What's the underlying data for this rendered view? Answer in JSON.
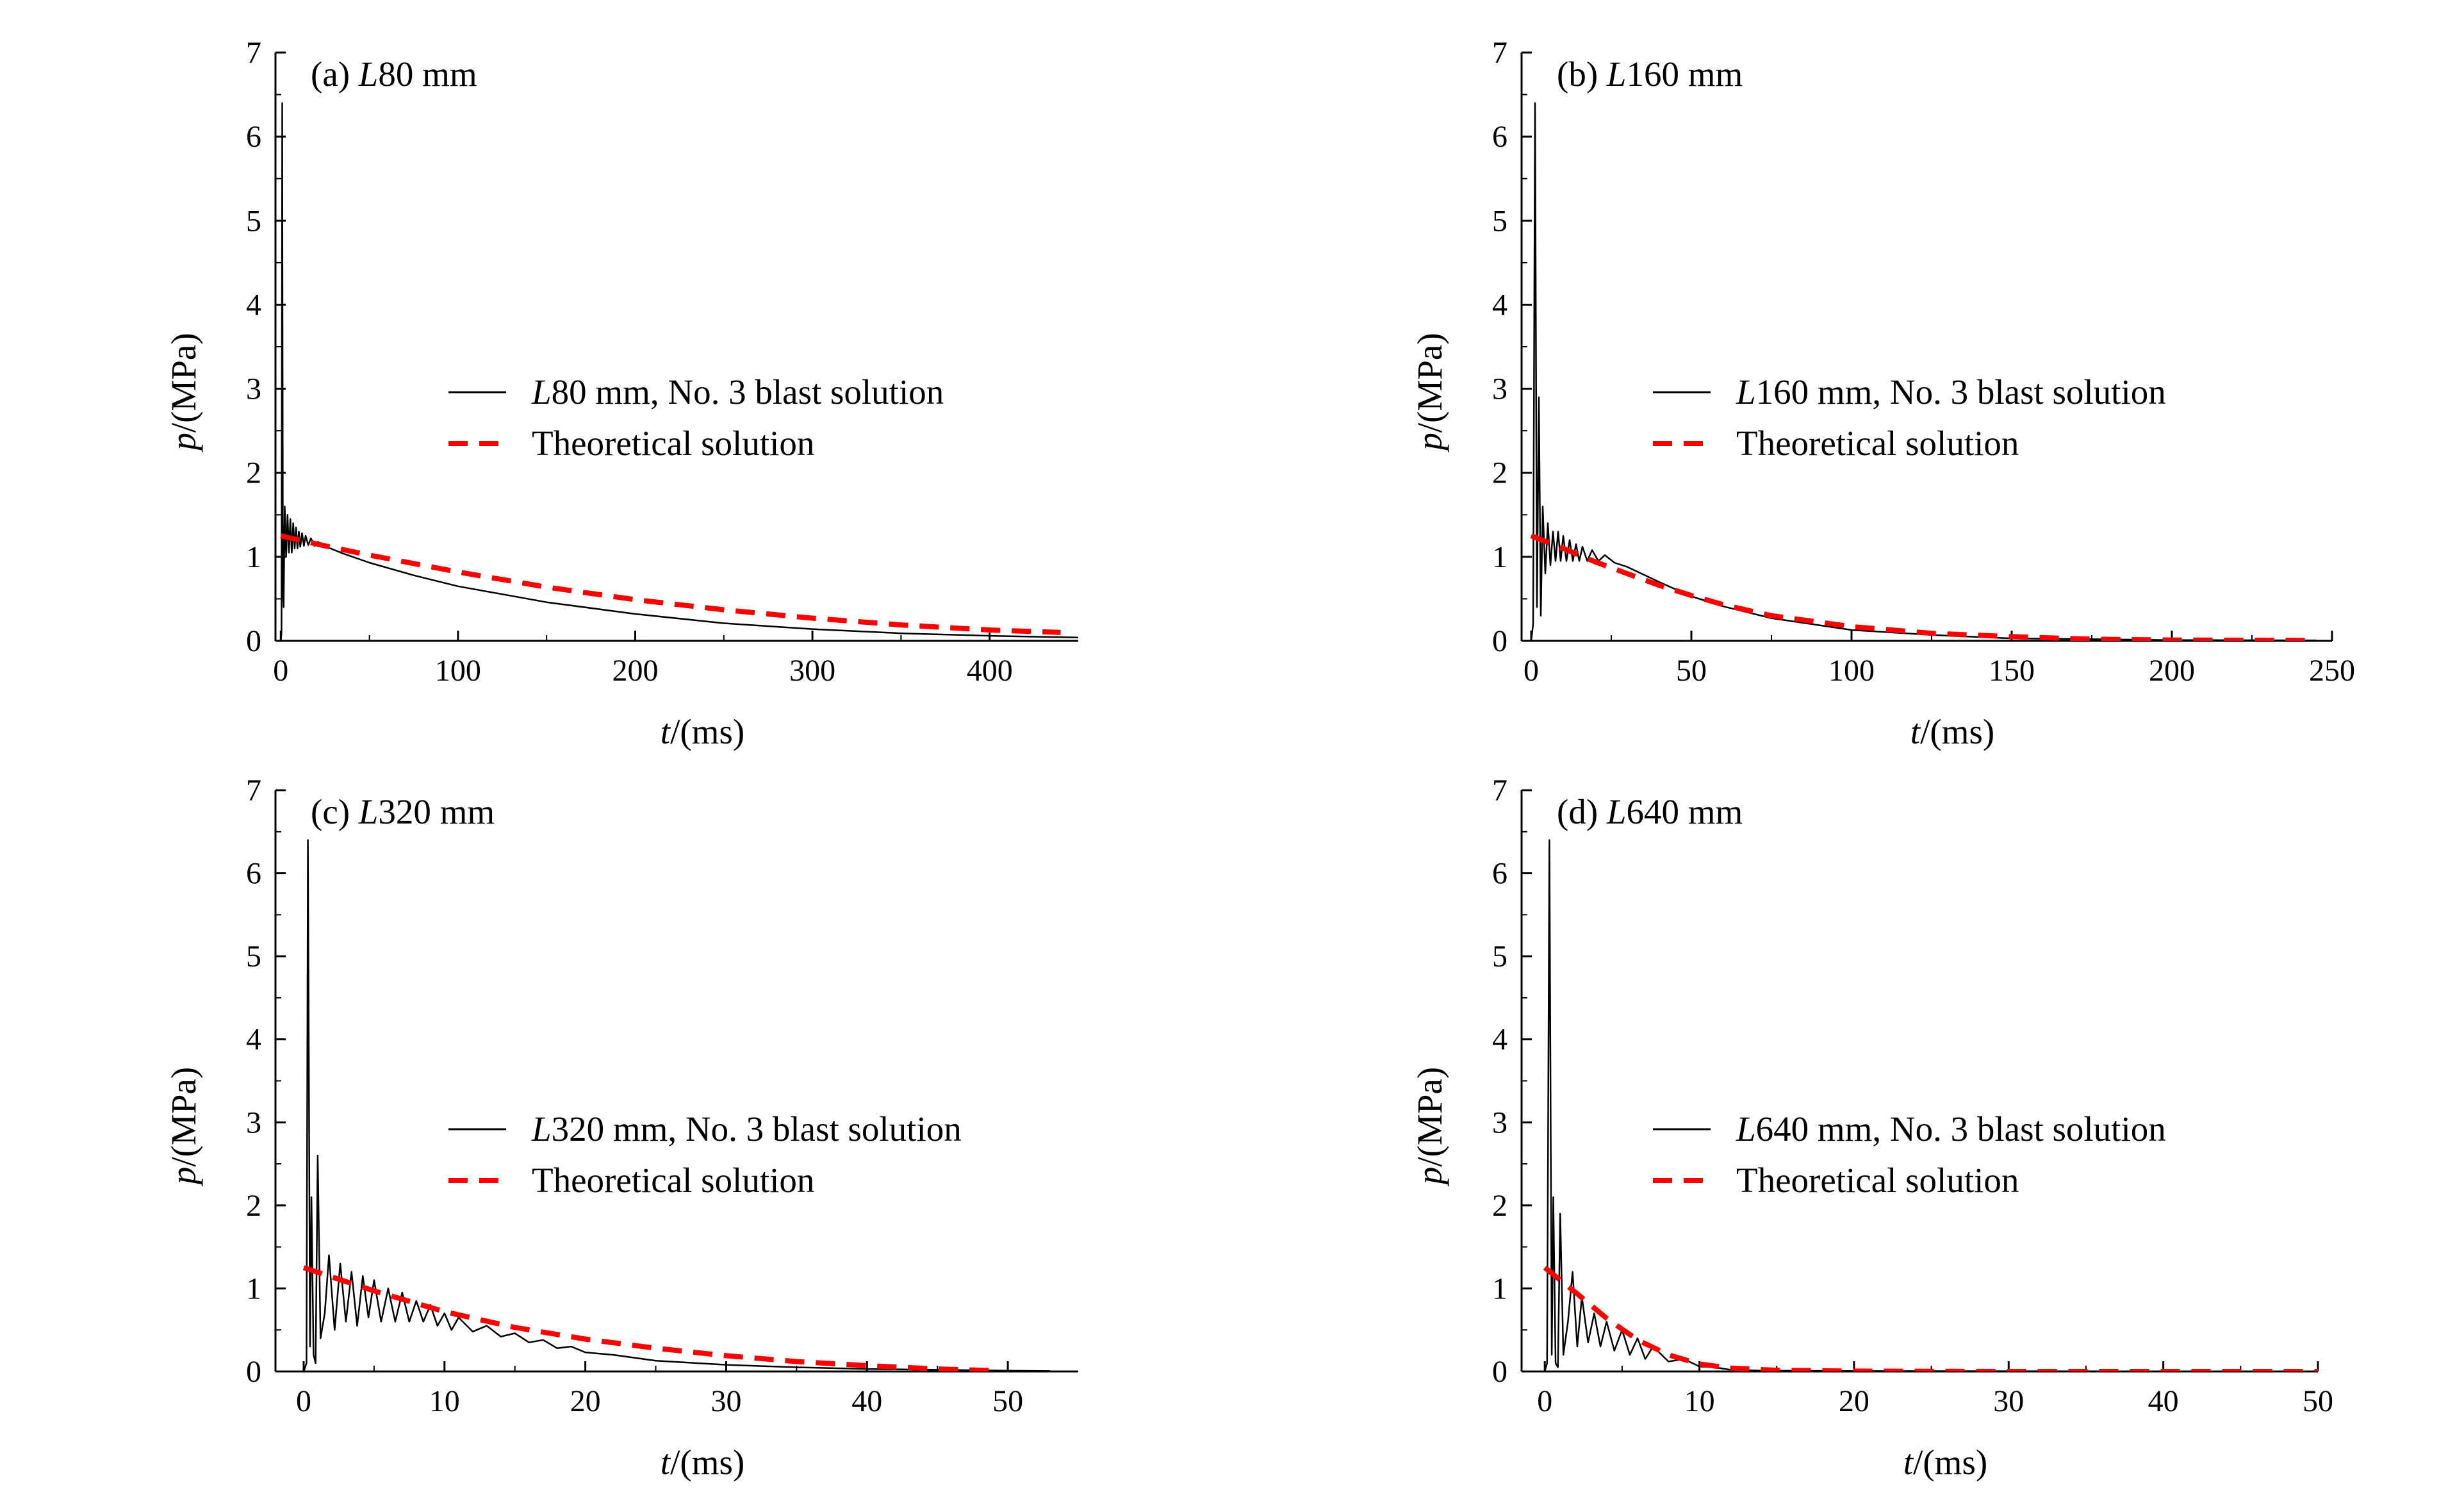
{
  "chart_data": [
    {
      "type": "line",
      "panel": "a",
      "title": {
        "prefix": "(a) ",
        "var": "L",
        "rest": "80 mm"
      },
      "xlabel": {
        "var": "t",
        "rest": "/(ms)"
      },
      "ylabel": {
        "var": "p",
        "rest": "/(MPa)"
      },
      "xlim": [
        -3,
        450
      ],
      "ylim": [
        0,
        7
      ],
      "xticks": [
        0,
        100,
        200,
        300,
        400
      ],
      "yticks": [
        0,
        1,
        2,
        3,
        4,
        5,
        6,
        7
      ],
      "legend_position": "center-right",
      "series": [
        {
          "name": "measured",
          "legend": {
            "var": "L",
            "rest": "80 mm, No. 3 blast solution"
          },
          "color": "#000000",
          "style": "solid",
          "points": [
            [
              0,
              0
            ],
            [
              0.4,
              0.1
            ],
            [
              0.8,
              6.4
            ],
            [
              1.2,
              0.6
            ],
            [
              1.6,
              0.4
            ],
            [
              2.2,
              1.6
            ],
            [
              3,
              1.0
            ],
            [
              3.8,
              1.5
            ],
            [
              4.6,
              1.05
            ],
            [
              5.4,
              1.45
            ],
            [
              6.2,
              1.05
            ],
            [
              7,
              1.4
            ],
            [
              7.8,
              1.1
            ],
            [
              8.6,
              1.35
            ],
            [
              9.4,
              1.1
            ],
            [
              10.2,
              1.3
            ],
            [
              11,
              1.12
            ],
            [
              12,
              1.28
            ],
            [
              13,
              1.13
            ],
            [
              14,
              1.25
            ],
            [
              15.5,
              1.14
            ],
            [
              17,
              1.22
            ],
            [
              19,
              1.13
            ],
            [
              21,
              1.18
            ],
            [
              24,
              1.12
            ],
            [
              28,
              1.1
            ],
            [
              35,
              1.04
            ],
            [
              50,
              0.93
            ],
            [
              75,
              0.78
            ],
            [
              100,
              0.65
            ],
            [
              150,
              0.46
            ],
            [
              200,
              0.32
            ],
            [
              250,
              0.21
            ],
            [
              300,
              0.14
            ],
            [
              350,
              0.09
            ],
            [
              400,
              0.06
            ],
            [
              450,
              0.04
            ]
          ]
        },
        {
          "name": "theory",
          "legend": {
            "var": "",
            "rest": "Theoretical solution"
          },
          "color": "#ff0000",
          "style": "dashed",
          "points": [
            [
              0,
              1.25
            ],
            [
              25,
              1.13
            ],
            [
              50,
              1.02
            ],
            [
              75,
              0.92
            ],
            [
              100,
              0.82
            ],
            [
              150,
              0.64
            ],
            [
              200,
              0.49
            ],
            [
              250,
              0.37
            ],
            [
              300,
              0.27
            ],
            [
              350,
              0.19
            ],
            [
              400,
              0.13
            ],
            [
              440,
              0.1
            ]
          ]
        }
      ]
    },
    {
      "type": "line",
      "panel": "b",
      "title": {
        "prefix": "(b) ",
        "var": "L",
        "rest": "160 mm"
      },
      "xlabel": {
        "var": "t",
        "rest": "/(ms)"
      },
      "ylabel": {
        "var": "p",
        "rest": "/(MPa)"
      },
      "xlim": [
        -3,
        250
      ],
      "ylim": [
        0,
        7
      ],
      "xticks": [
        0,
        50,
        100,
        150,
        200,
        250
      ],
      "yticks": [
        0,
        1,
        2,
        3,
        4,
        5,
        6,
        7
      ],
      "legend_position": "center-right",
      "series": [
        {
          "name": "measured",
          "legend": {
            "var": "L",
            "rest": "160 mm, No. 3 blast solution"
          },
          "color": "#000000",
          "style": "solid",
          "points": [
            [
              0,
              0
            ],
            [
              0.6,
              0.2
            ],
            [
              1.2,
              6.4
            ],
            [
              1.8,
              0.4
            ],
            [
              2.4,
              2.9
            ],
            [
              3,
              0.3
            ],
            [
              3.6,
              1.6
            ],
            [
              4.4,
              0.8
            ],
            [
              5.2,
              1.4
            ],
            [
              6,
              0.9
            ],
            [
              6.8,
              1.3
            ],
            [
              7.6,
              0.95
            ],
            [
              8.4,
              1.3
            ],
            [
              9.2,
              0.95
            ],
            [
              10,
              1.25
            ],
            [
              11,
              0.95
            ],
            [
              12,
              1.2
            ],
            [
              13,
              0.95
            ],
            [
              14,
              1.15
            ],
            [
              15,
              0.95
            ],
            [
              16,
              1.12
            ],
            [
              17.5,
              0.95
            ],
            [
              19,
              1.08
            ],
            [
              21,
              0.95
            ],
            [
              23,
              1.02
            ],
            [
              26,
              0.93
            ],
            [
              30,
              0.88
            ],
            [
              40,
              0.7
            ],
            [
              50,
              0.53
            ],
            [
              60,
              0.41
            ],
            [
              75,
              0.27
            ],
            [
              100,
              0.13
            ],
            [
              125,
              0.07
            ],
            [
              150,
              0.03
            ],
            [
              200,
              0.01
            ],
            [
              245,
              0.005
            ]
          ]
        },
        {
          "name": "theory",
          "legend": {
            "var": "",
            "rest": "Theoretical solution"
          },
          "color": "#ff0000",
          "style": "dashed",
          "points": [
            [
              0,
              1.25
            ],
            [
              10,
              1.1
            ],
            [
              20,
              0.94
            ],
            [
              30,
              0.8
            ],
            [
              40,
              0.66
            ],
            [
              50,
              0.54
            ],
            [
              60,
              0.43
            ],
            [
              75,
              0.3
            ],
            [
              100,
              0.17
            ],
            [
              125,
              0.09
            ],
            [
              150,
              0.05
            ],
            [
              175,
              0.02
            ],
            [
              200,
              0.01
            ],
            [
              245,
              0.005
            ]
          ]
        }
      ]
    },
    {
      "type": "line",
      "panel": "c",
      "title": {
        "prefix": "(c) ",
        "var": "L",
        "rest": "320 mm"
      },
      "xlabel": {
        "var": "t",
        "rest": "/(ms)"
      },
      "ylabel": {
        "var": "p",
        "rest": "/(MPa)"
      },
      "xlim": [
        -2,
        55
      ],
      "ylim": [
        0,
        7
      ],
      "xticks": [
        0,
        10,
        20,
        30,
        40,
        50
      ],
      "yticks": [
        0,
        1,
        2,
        3,
        4,
        5,
        6,
        7
      ],
      "legend_position": "center-right",
      "series": [
        {
          "name": "measured",
          "legend": {
            "var": "L",
            "rest": "320 mm, No. 3 blast solution"
          },
          "color": "#000000",
          "style": "solid",
          "points": [
            [
              0,
              0
            ],
            [
              0.2,
              0.1
            ],
            [
              0.3,
              6.4
            ],
            [
              0.45,
              0.3
            ],
            [
              0.55,
              2.1
            ],
            [
              0.7,
              0.2
            ],
            [
              0.85,
              0.1
            ],
            [
              1.0,
              2.6
            ],
            [
              1.2,
              0.4
            ],
            [
              1.5,
              0.7
            ],
            [
              1.8,
              1.4
            ],
            [
              2.2,
              0.5
            ],
            [
              2.6,
              1.3
            ],
            [
              3.0,
              0.6
            ],
            [
              3.4,
              1.2
            ],
            [
              3.8,
              0.55
            ],
            [
              4.2,
              1.15
            ],
            [
              4.6,
              0.65
            ],
            [
              5.0,
              1.1
            ],
            [
              5.5,
              0.6
            ],
            [
              6.0,
              1.0
            ],
            [
              6.5,
              0.6
            ],
            [
              7.0,
              0.95
            ],
            [
              7.5,
              0.6
            ],
            [
              8.0,
              0.85
            ],
            [
              8.5,
              0.6
            ],
            [
              9.0,
              0.8
            ],
            [
              9.5,
              0.55
            ],
            [
              10,
              0.7
            ],
            [
              10.5,
              0.5
            ],
            [
              11,
              0.65
            ],
            [
              12,
              0.48
            ],
            [
              13,
              0.55
            ],
            [
              14,
              0.42
            ],
            [
              15,
              0.46
            ],
            [
              16,
              0.35
            ],
            [
              17,
              0.38
            ],
            [
              18,
              0.28
            ],
            [
              19,
              0.3
            ],
            [
              20,
              0.23
            ],
            [
              22,
              0.2
            ],
            [
              25,
              0.13
            ],
            [
              30,
              0.08
            ],
            [
              35,
              0.05
            ],
            [
              40,
              0.03
            ],
            [
              45,
              0.02
            ],
            [
              50,
              0.01
            ],
            [
              53,
              0.005
            ]
          ]
        },
        {
          "name": "theory",
          "legend": {
            "var": "",
            "rest": "Theoretical solution"
          },
          "color": "#ff0000",
          "style": "dashed",
          "points": [
            [
              0,
              1.25
            ],
            [
              5,
              0.97
            ],
            [
              10,
              0.72
            ],
            [
              15,
              0.53
            ],
            [
              20,
              0.39
            ],
            [
              25,
              0.28
            ],
            [
              30,
              0.19
            ],
            [
              35,
              0.12
            ],
            [
              40,
              0.07
            ],
            [
              45,
              0.03
            ],
            [
              49,
              0.01
            ]
          ]
        }
      ]
    },
    {
      "type": "line",
      "panel": "d",
      "title": {
        "prefix": "(d) ",
        "var": "L",
        "rest": "640 mm"
      },
      "xlabel": {
        "var": "t",
        "rest": "/(ms)"
      },
      "ylabel": {
        "var": "p",
        "rest": "/(MPa)"
      },
      "xlim": [
        -1.5,
        50
      ],
      "ylim": [
        0,
        7
      ],
      "xticks": [
        0,
        10,
        20,
        30,
        40,
        50
      ],
      "yticks": [
        0,
        1,
        2,
        3,
        4,
        5,
        6,
        7
      ],
      "legend_position": "center-right",
      "series": [
        {
          "name": "measured",
          "legend": {
            "var": "L",
            "rest": "640 mm, No. 3 blast solution"
          },
          "color": "#000000",
          "style": "solid",
          "points": [
            [
              0,
              0
            ],
            [
              0.15,
              0.1
            ],
            [
              0.3,
              6.4
            ],
            [
              0.45,
              0.2
            ],
            [
              0.55,
              2.1
            ],
            [
              0.7,
              0.1
            ],
            [
              0.85,
              0.05
            ],
            [
              1.0,
              1.9
            ],
            [
              1.2,
              0.2
            ],
            [
              1.5,
              0.6
            ],
            [
              1.8,
              1.2
            ],
            [
              2.1,
              0.3
            ],
            [
              2.4,
              0.9
            ],
            [
              2.8,
              0.35
            ],
            [
              3.2,
              0.7
            ],
            [
              3.6,
              0.3
            ],
            [
              4.0,
              0.6
            ],
            [
              4.5,
              0.25
            ],
            [
              5.0,
              0.5
            ],
            [
              5.5,
              0.2
            ],
            [
              6.0,
              0.4
            ],
            [
              6.5,
              0.15
            ],
            [
              7.0,
              0.3
            ],
            [
              8.0,
              0.12
            ],
            [
              9.0,
              0.15
            ],
            [
              10,
              0.06
            ],
            [
              11,
              0.05
            ],
            [
              12,
              0.02
            ],
            [
              14,
              0.01
            ],
            [
              20,
              0.005
            ],
            [
              50,
              0
            ]
          ]
        },
        {
          "name": "theory",
          "legend": {
            "var": "",
            "rest": "Theoretical solution"
          },
          "color": "#ff0000",
          "style": "dashed",
          "points": [
            [
              0,
              1.25
            ],
            [
              2,
              0.95
            ],
            [
              4,
              0.64
            ],
            [
              6,
              0.38
            ],
            [
              8,
              0.2
            ],
            [
              10,
              0.09
            ],
            [
              12,
              0.04
            ],
            [
              15,
              0.015
            ],
            [
              20,
              0.005
            ],
            [
              30,
              0
            ],
            [
              50,
              0
            ]
          ]
        }
      ]
    }
  ]
}
